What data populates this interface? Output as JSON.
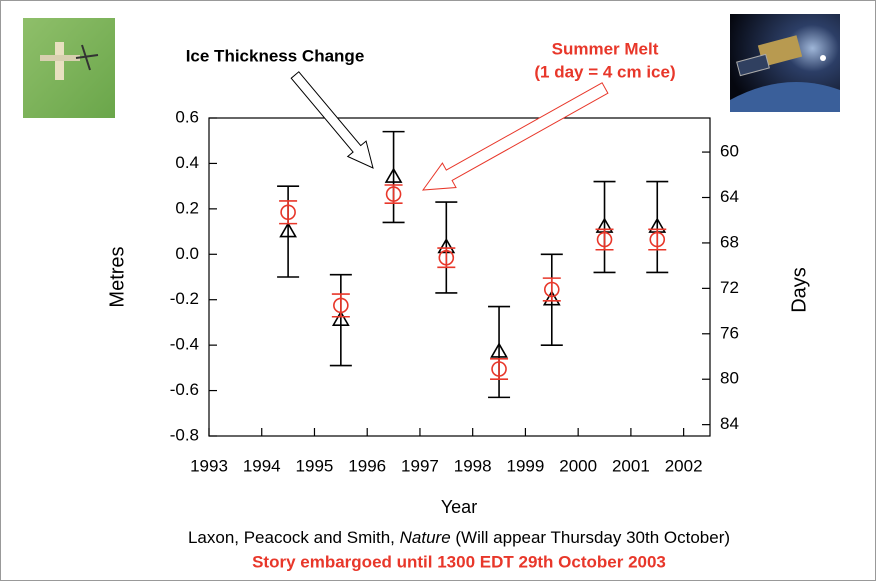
{
  "chart_data": {
    "type": "scatter",
    "x_label": "Year",
    "y_label": "Metres",
    "y2_label": "Days",
    "xlim": [
      1993,
      2002.5
    ],
    "xticks": [
      1993,
      1994,
      1995,
      1996,
      1997,
      1998,
      1999,
      2000,
      2001,
      2002
    ],
    "ylim": [
      -0.8,
      0.6
    ],
    "yticks": [
      {
        "value": -0.8,
        "label": "-0.8"
      },
      {
        "value": -0.6,
        "label": "-0.6"
      },
      {
        "value": -0.4,
        "label": "-0.4"
      },
      {
        "value": -0.2,
        "label": "-0.2"
      },
      {
        "value": 0,
        "label": "0.0"
      },
      {
        "value": 0.2,
        "label": "0.2"
      },
      {
        "value": 0.4,
        "label": "0.4"
      },
      {
        "value": 0.6,
        "label": "0.6"
      }
    ],
    "y2lim": [
      85,
      57
    ],
    "y2ticks": [
      60,
      64,
      68,
      72,
      76,
      80,
      84
    ],
    "series": [
      {
        "name": "Ice Thickness Change",
        "color": "#000000",
        "marker": "triangle",
        "x": [
          1994.5,
          1995.5,
          1996.5,
          1997.5,
          1998.5,
          1999.5,
          2000.5,
          2001.5
        ],
        "values": [
          0.1,
          -0.29,
          0.34,
          0.03,
          -0.43,
          -0.2,
          0.12,
          0.12
        ],
        "errors": [
          0.2,
          0.2,
          0.2,
          0.2,
          0.2,
          0.2,
          0.2,
          0.2
        ]
      },
      {
        "name": "Summer Melt",
        "color": "#e8372a",
        "marker": "circle",
        "axis": "y2",
        "x": [
          1994.5,
          1995.5,
          1996.5,
          1997.5,
          1998.5,
          1999.5,
          2000.5,
          2001.5
        ],
        "values": [
          65.3,
          73.5,
          63.7,
          69.3,
          79.1,
          72.1,
          67.7,
          67.7
        ],
        "errors": [
          1,
          1,
          0.8,
          0.85,
          0.9,
          1,
          0.9,
          0.9
        ]
      }
    ],
    "annotations": [
      "(1 day = 4 cm ice)"
    ],
    "caption": {
      "before": "Laxon, Peacock and Smith, ",
      "italic": "Nature",
      "after": " (Will appear Thursday 30th October)"
    },
    "embargo": "Story embargoed until 1300 EDT 29th October 2003"
  }
}
